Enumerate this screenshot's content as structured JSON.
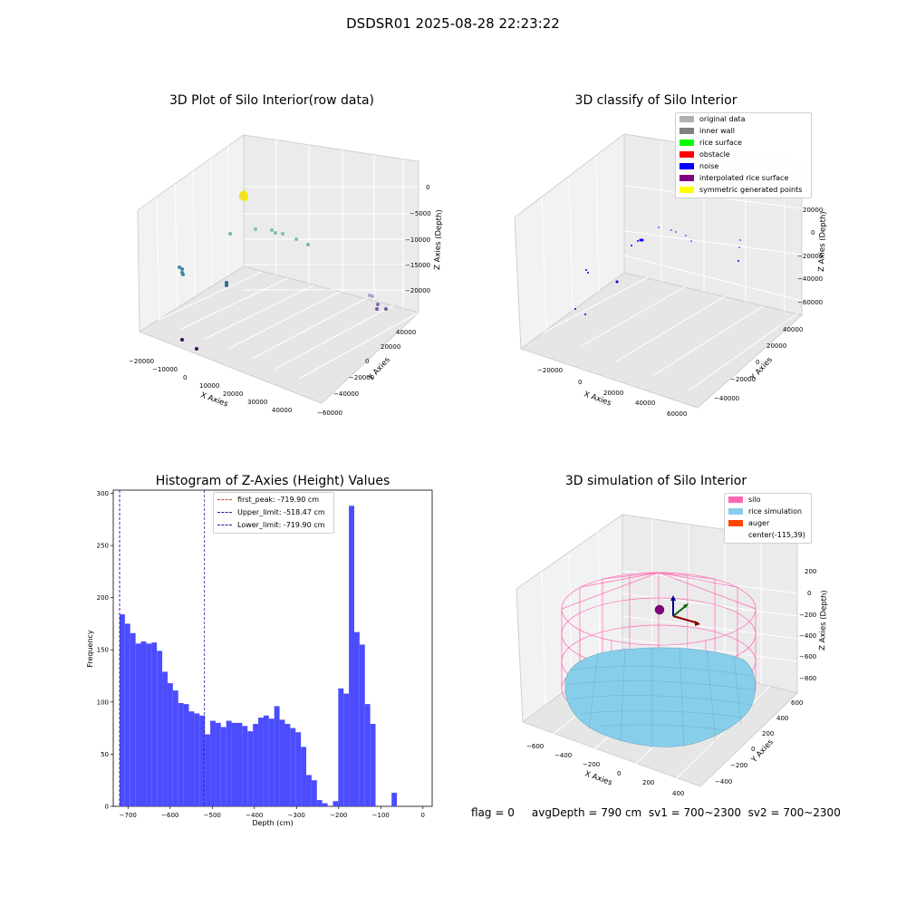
{
  "figure": {
    "suptitle": "DSDSR01 2025-08-28 22:23:22",
    "footer": "flag = 0     avgDepth = 790 cm  sv1 = 700~2300  sv2 = 700~2300"
  },
  "colors": {
    "hist_bar": "#4c4cff",
    "first_peak": "#e8372c",
    "limit_line": "#1a1aa8",
    "silo": "#ff69b4",
    "rice_simulation": "#87ceeb",
    "auger": "#ff4500",
    "grid_pane": "#f2f2f2"
  },
  "panels": {
    "raw3d": {
      "title": "3D Plot of Silo Interior(row data)",
      "xlabel": "X Axies",
      "ylabel": "Y Axies",
      "zlabel": "Z Axies (Depth)",
      "xticks": [
        "−20000",
        "−10000",
        "0",
        "10000",
        "20000",
        "30000",
        "40000"
      ],
      "yticks": [
        "40000",
        "20000",
        "0",
        "−20000",
        "−40000",
        "−60000"
      ],
      "zticks": [
        "0",
        "−5000",
        "−10000",
        "−15000",
        "−20000"
      ]
    },
    "classify3d": {
      "title": "3D classify of Silo Interior",
      "xlabel": "X Axies",
      "ylabel": "Y Axies",
      "zlabel": "Z Axies (Depth)",
      "xticks": [
        "−20000",
        "0",
        "20000",
        "40000",
        "60000"
      ],
      "yticks": [
        "40000",
        "20000",
        "0",
        "−20000",
        "−40000"
      ],
      "zticks": [
        "20000",
        "0",
        "−20000",
        "−40000",
        "−60000"
      ],
      "legend": [
        {
          "label": "original data",
          "color": "#b0b0b0"
        },
        {
          "label": "inner wall",
          "color": "#808080"
        },
        {
          "label": "rice surface",
          "color": "#00ff00"
        },
        {
          "label": "obstacle",
          "color": "#ff0000"
        },
        {
          "label": "noise",
          "color": "#0000ff"
        },
        {
          "label": "interpolated rice surface",
          "color": "#800080"
        },
        {
          "label": "symmetric generated points",
          "color": "#ffff00"
        }
      ]
    },
    "simulation3d": {
      "title": "3D simulation of Silo Interior",
      "xlabel": "X Axies",
      "ylabel": "Y Axies",
      "zlabel": "Z Axies (Depth)",
      "xticks": [
        "−600",
        "−400",
        "−200",
        "0",
        "200",
        "400"
      ],
      "yticks": [
        "600",
        "400",
        "200",
        "0",
        "−200",
        "−400"
      ],
      "zticks": [
        "200",
        "0",
        "−200",
        "−400",
        "−600",
        "−800"
      ],
      "legend": [
        {
          "label": "silo",
          "color": "#ff69b4"
        },
        {
          "label": "rice simulation",
          "color": "#87ceeb"
        },
        {
          "label": "auger",
          "color": "#ff4500"
        },
        {
          "label": "center(-115,39)",
          "color": ""
        }
      ]
    }
  },
  "chart_data": {
    "type": "bar",
    "title": "Histogram of Z-Axies (Height) Values",
    "xlabel": "Depth (cm)",
    "ylabel": "Frequency",
    "xlim": [
      -735,
      22
    ],
    "ylim": [
      0,
      303
    ],
    "xticks": [
      -700,
      -600,
      -500,
      -400,
      -300,
      -200,
      -100,
      0
    ],
    "yticks": [
      0,
      50,
      100,
      150,
      200,
      250,
      300
    ],
    "bin_start": -720,
    "bin_width": 12.66,
    "values": [
      184,
      175,
      166,
      156,
      158,
      156,
      157,
      149,
      129,
      118,
      111,
      99,
      98,
      91,
      89,
      87,
      69,
      82,
      80,
      76,
      82,
      80,
      80,
      77,
      72,
      79,
      85,
      87,
      84,
      96,
      83,
      79,
      75,
      71,
      57,
      30,
      25,
      6,
      3,
      0,
      5,
      113,
      108,
      288,
      167,
      155,
      98,
      79,
      0,
      0,
      0,
      13
    ],
    "legend_position": "upper-center",
    "lines": [
      {
        "label": "first_peak: -719.90 cm",
        "x": -719.9,
        "style": "dashed",
        "color": "#e8372c"
      },
      {
        "label": "Upper_limit: -518.47 cm",
        "x": -518.47,
        "style": "dashed",
        "color": "#1a1aa8"
      },
      {
        "label": "Lower_limit: -719.90 cm",
        "x": -719.9,
        "style": "dashed",
        "color": "#1a1aa8"
      }
    ]
  }
}
